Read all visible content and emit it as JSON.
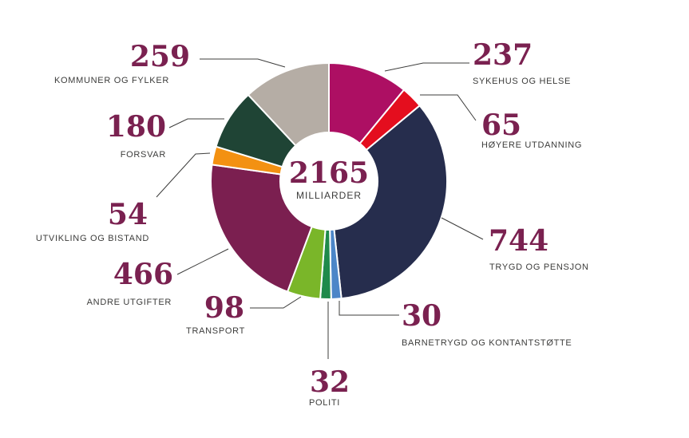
{
  "chart_data": {
    "type": "pie",
    "style": "donut",
    "direction": "clockwise",
    "start_angle_deg": 0,
    "center": {
      "value": "2165",
      "unit": "MILLIARDER"
    },
    "number_color": "#7a2150",
    "label_color": "#3c3c3b",
    "segments": [
      {
        "label": "SYKEHUS OG HELSE",
        "value": 237,
        "color": "#ad0f63"
      },
      {
        "label": "HØYERE UTDANNING",
        "value": 65,
        "color": "#e40e1e"
      },
      {
        "label": "TRYGD OG PENSJON",
        "value": 744,
        "color": "#262d4d"
      },
      {
        "label": "BARNETRYGD OG KONTANTSTØTTE",
        "value": 30,
        "color": "#4c86c8"
      },
      {
        "label": "POLITI",
        "value": 32,
        "color": "#1f8a4b"
      },
      {
        "label": "TRANSPORT",
        "value": 98,
        "color": "#7ab629"
      },
      {
        "label": "ANDRE UTGIFTER",
        "value": 466,
        "color": "#7b1f50"
      },
      {
        "label": "UTVIKLING OG BISTAND",
        "value": 54,
        "color": "#f39112"
      },
      {
        "label": "FORSVAR",
        "value": 180,
        "color": "#1f4435"
      },
      {
        "label": "KOMMUNER OG FYLKER",
        "value": 259,
        "color": "#b5ada5"
      }
    ],
    "total": 2165
  }
}
